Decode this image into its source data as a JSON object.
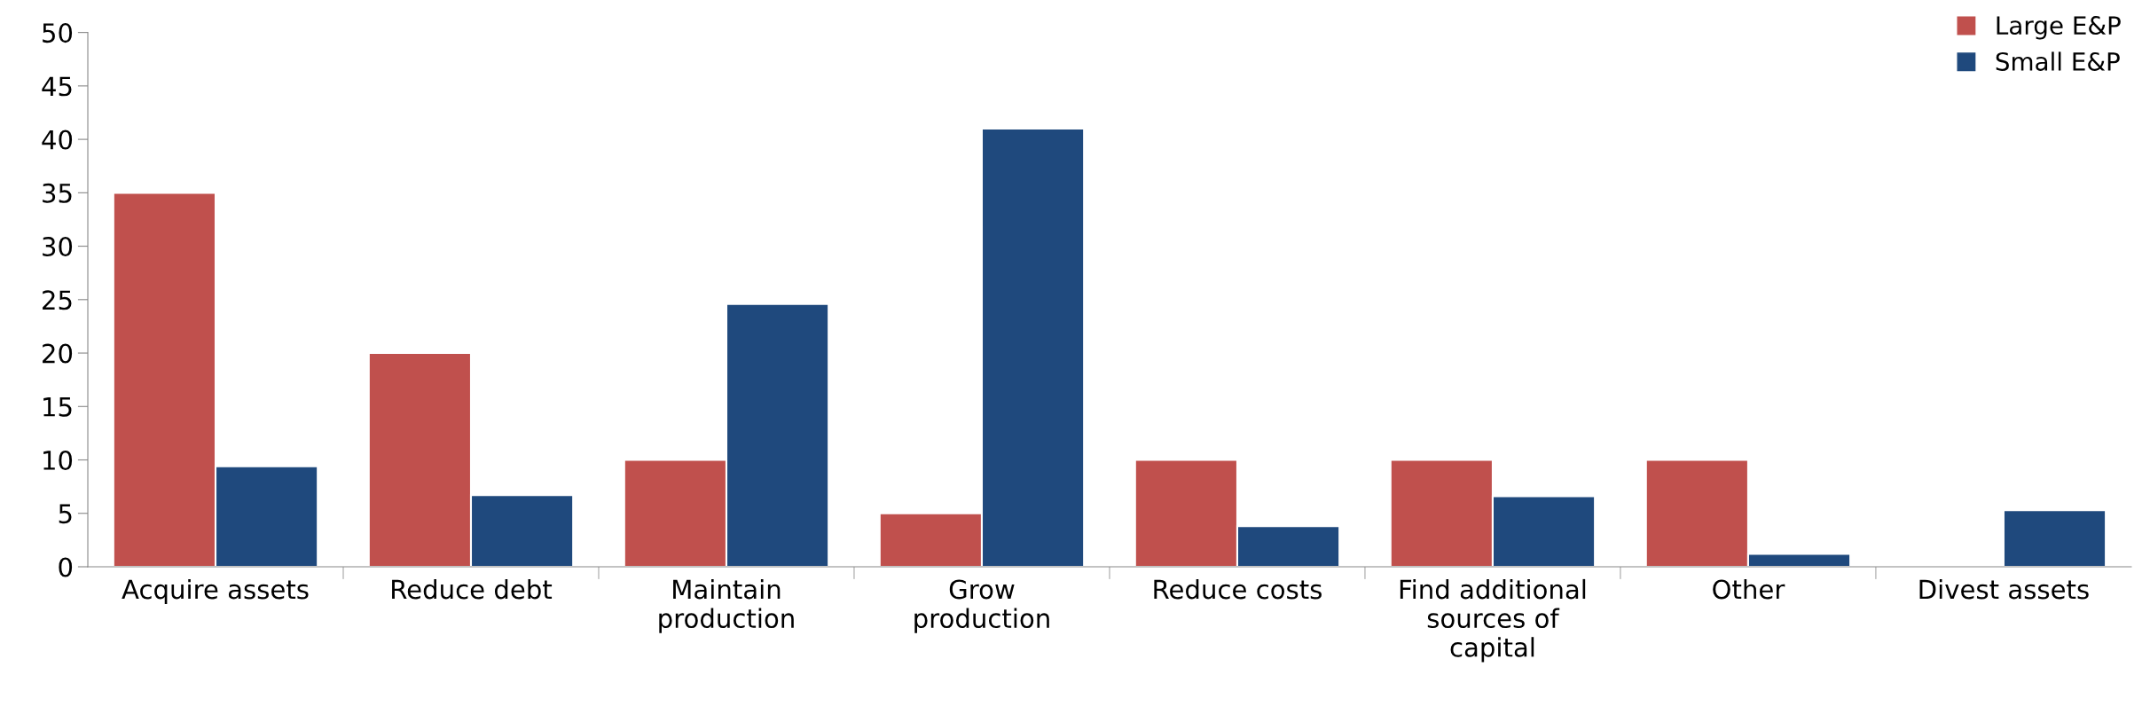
{
  "chart_data": {
    "type": "bar",
    "categories": [
      "Acquire assets",
      "Reduce debt",
      "Maintain\nproduction",
      "Grow\nproduction",
      "Reduce costs",
      "Find additional\nsources of\ncapital",
      "Other",
      "Divest assets"
    ],
    "series": [
      {
        "name": "Large E&P",
        "color": "#c0504d",
        "values": [
          35,
          20,
          10,
          5,
          10,
          10,
          10,
          null
        ]
      },
      {
        "name": "Small E&P",
        "color": "#1f497d",
        "values": [
          9.4,
          6.7,
          24.6,
          41,
          3.8,
          6.6,
          1.2,
          5.3
        ]
      }
    ],
    "ylim": [
      0,
      50
    ],
    "yticks": [
      0,
      5,
      10,
      15,
      20,
      25,
      30,
      35,
      40,
      45,
      50
    ],
    "grid": false,
    "legend": "top right"
  }
}
